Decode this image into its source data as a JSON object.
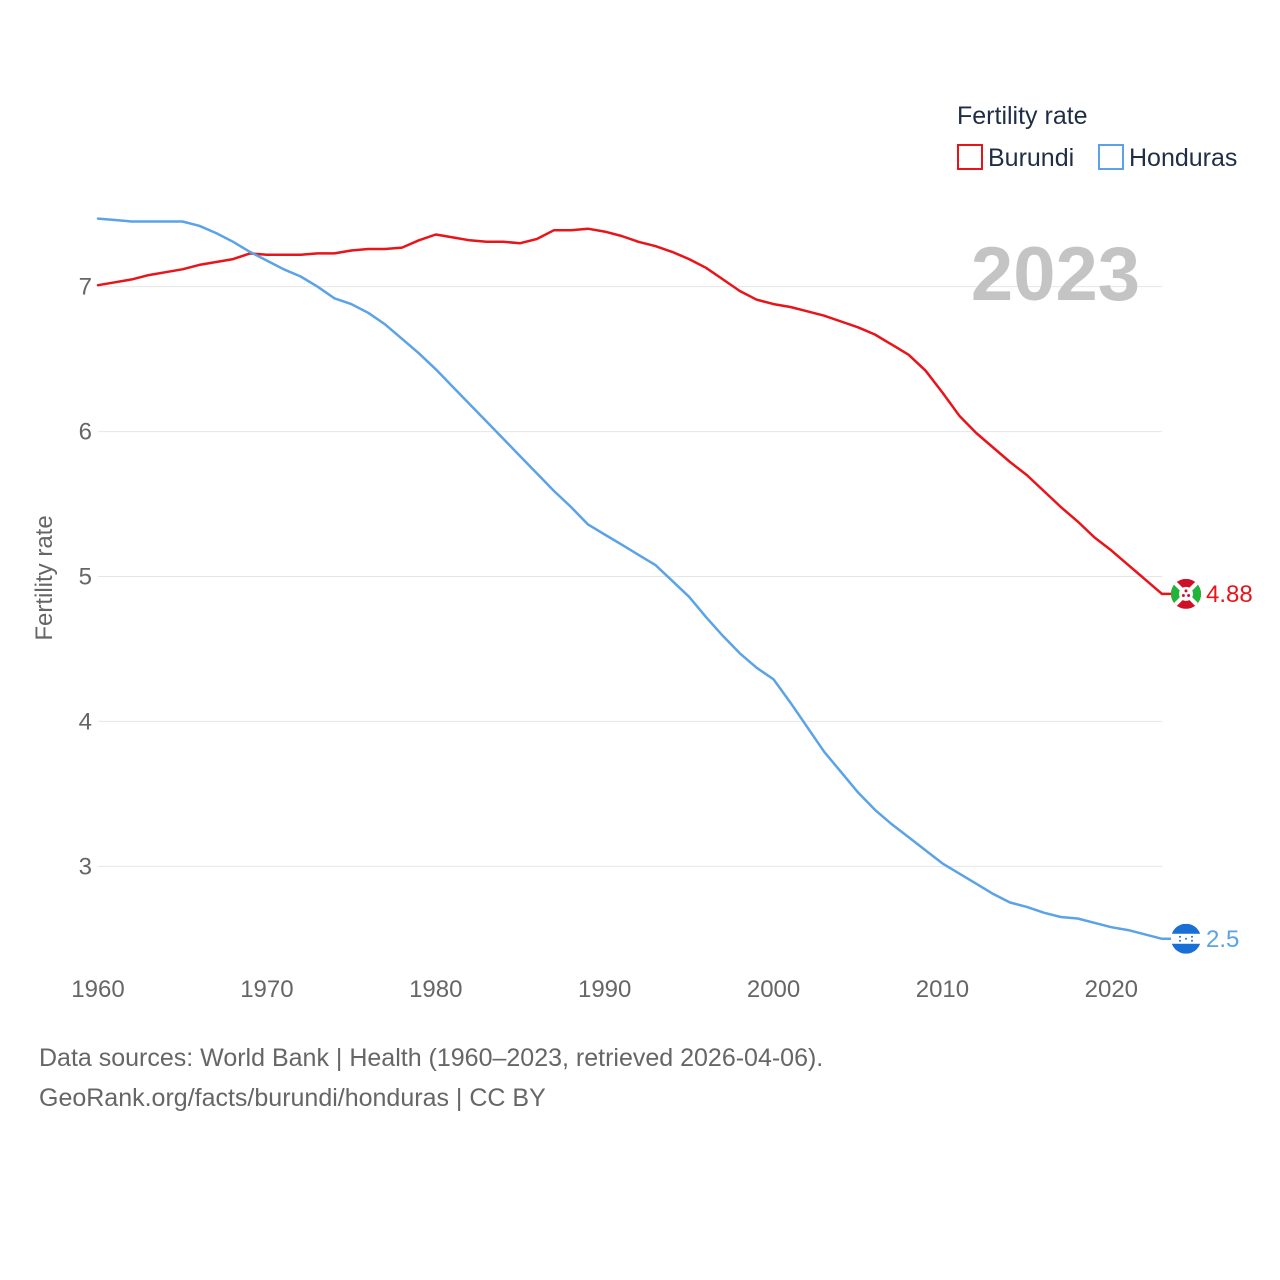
{
  "chart_data": {
    "type": "line",
    "legend_title": "Fertility rate",
    "legend_position": "top-right",
    "ylabel": "Fertility rate",
    "xlabel": "",
    "year_label": "2023",
    "xlim": [
      1960,
      2023
    ],
    "ylim": [
      2.25,
      7.75
    ],
    "x_ticks": [
      1960,
      1970,
      1980,
      1990,
      2000,
      2010,
      2020
    ],
    "y_ticks": [
      3,
      4,
      5,
      6,
      7
    ],
    "grid": true,
    "x": [
      1960,
      1961,
      1962,
      1963,
      1964,
      1965,
      1966,
      1967,
      1968,
      1969,
      1970,
      1971,
      1972,
      1973,
      1974,
      1975,
      1976,
      1977,
      1978,
      1979,
      1980,
      1981,
      1982,
      1983,
      1984,
      1985,
      1986,
      1987,
      1988,
      1989,
      1990,
      1991,
      1992,
      1993,
      1994,
      1995,
      1996,
      1997,
      1998,
      1999,
      2000,
      2001,
      2002,
      2003,
      2004,
      2005,
      2006,
      2007,
      2008,
      2009,
      2010,
      2011,
      2012,
      2013,
      2014,
      2015,
      2016,
      2017,
      2018,
      2019,
      2020,
      2021,
      2022,
      2023
    ],
    "series": [
      {
        "name": "Burundi",
        "color": "#e8141a",
        "icon": "burundi-flag-icon",
        "end_label": "4.88",
        "values": [
          7.01,
          7.03,
          7.05,
          7.08,
          7.1,
          7.12,
          7.15,
          7.17,
          7.19,
          7.23,
          7.22,
          7.22,
          7.22,
          7.23,
          7.23,
          7.25,
          7.26,
          7.26,
          7.27,
          7.32,
          7.36,
          7.34,
          7.32,
          7.31,
          7.31,
          7.3,
          7.33,
          7.39,
          7.39,
          7.4,
          7.38,
          7.35,
          7.31,
          7.28,
          7.24,
          7.19,
          7.13,
          7.05,
          6.97,
          6.91,
          6.88,
          6.86,
          6.83,
          6.8,
          6.76,
          6.72,
          6.67,
          6.6,
          6.53,
          6.42,
          6.27,
          6.11,
          5.99,
          5.89,
          5.79,
          5.7,
          5.59,
          5.48,
          5.38,
          5.27,
          5.18,
          5.08,
          4.98,
          4.88
        ]
      },
      {
        "name": "Honduras",
        "color": "#5ba3e6",
        "icon": "honduras-flag-icon",
        "end_label": "2.5",
        "values": [
          7.47,
          7.46,
          7.45,
          7.45,
          7.45,
          7.45,
          7.42,
          7.37,
          7.31,
          7.24,
          7.18,
          7.12,
          7.07,
          7.0,
          6.92,
          6.88,
          6.82,
          6.74,
          6.64,
          6.54,
          6.43,
          6.31,
          6.19,
          6.07,
          5.95,
          5.83,
          5.71,
          5.59,
          5.48,
          5.36,
          5.29,
          5.22,
          5.15,
          5.08,
          4.97,
          4.86,
          4.72,
          4.59,
          4.47,
          4.37,
          4.29,
          4.13,
          3.96,
          3.79,
          3.65,
          3.51,
          3.39,
          3.29,
          3.2,
          3.11,
          3.02,
          2.95,
          2.88,
          2.81,
          2.75,
          2.72,
          2.68,
          2.65,
          2.64,
          2.61,
          2.58,
          2.56,
          2.53,
          2.5
        ]
      }
    ]
  },
  "footer": {
    "line1": "Data sources: World Bank | Health (1960–2023, retrieved 2026-04-06).",
    "line2": "GeoRank.org/facts/burundi/honduras | CC BY"
  }
}
